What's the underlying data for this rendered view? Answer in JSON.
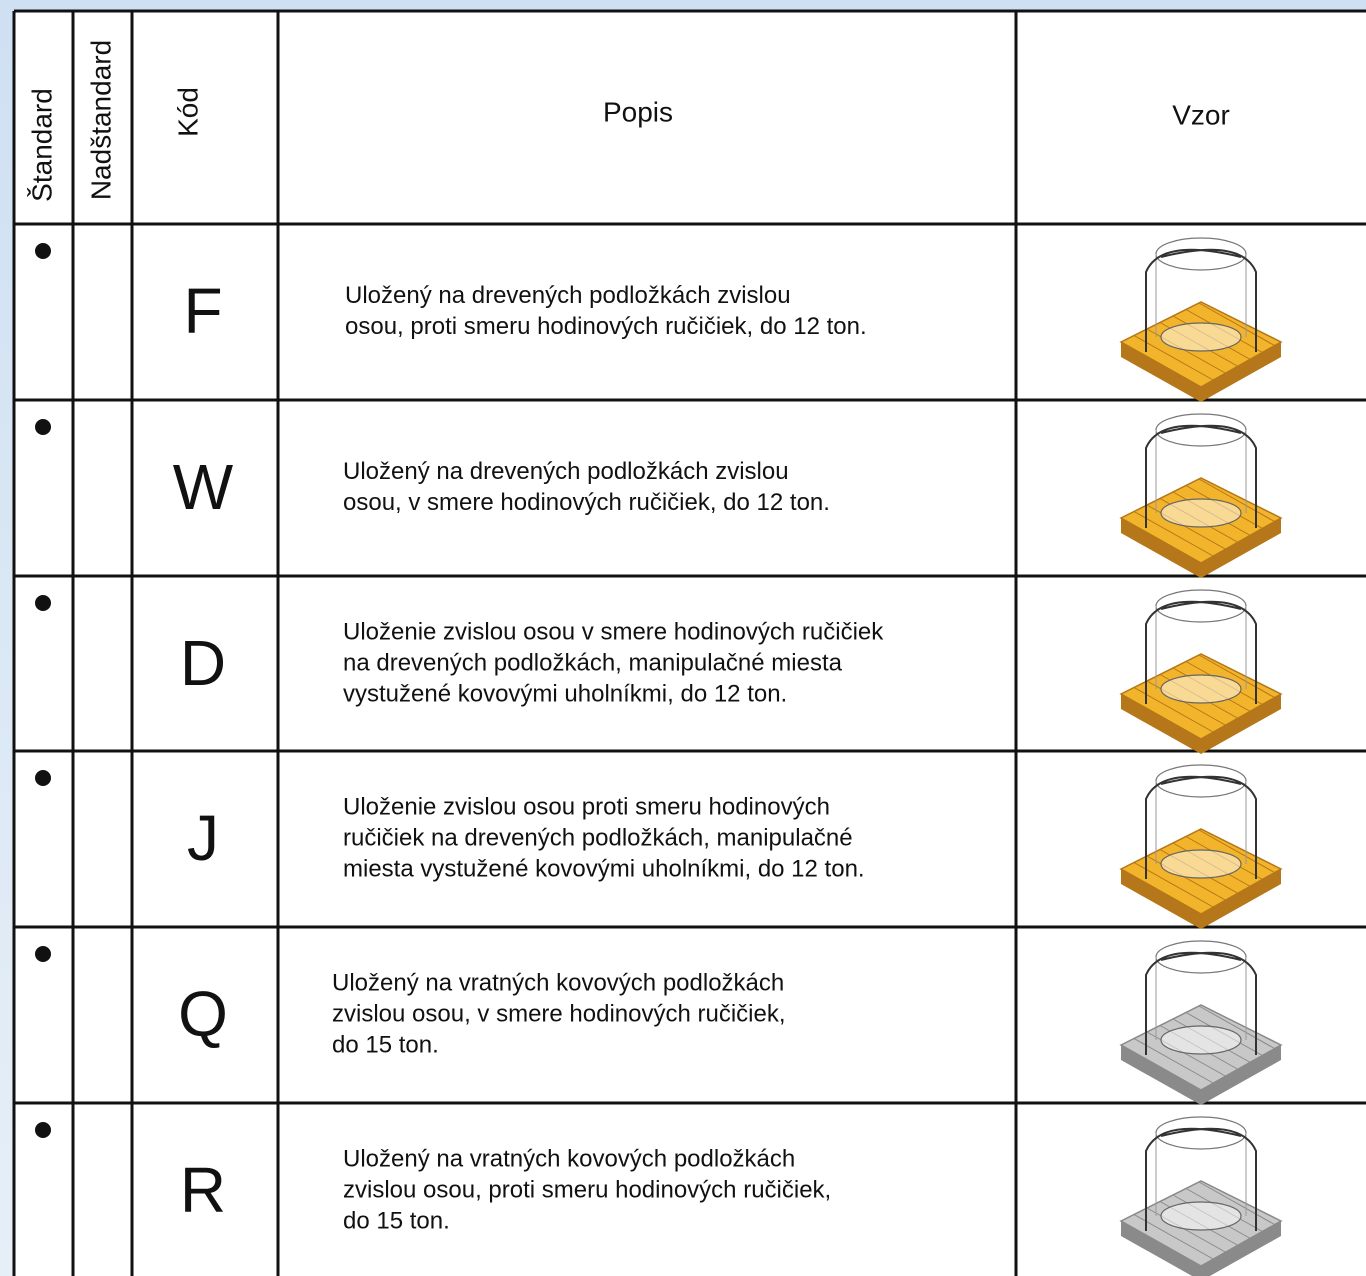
{
  "table": {
    "header": [
      "Štandard",
      "Nadštandard",
      "Kód",
      "Popis",
      "Vzor"
    ],
    "rows": [
      {
        "code": "F",
        "description": [
          "Uložený na drevených podložkách zvislou",
          "osou, proti smeru hodinových ručičiek, do 12 ton."
        ]
      },
      {
        "code": "W",
        "description": [
          "Uložený na drevených podložkách zvislou",
          "osou, v smere hodinových ručičiek, do 12 ton."
        ]
      },
      {
        "code": "D",
        "description": [
          "Uloženie zvislou osou v smere hodinových ručičiek",
          "na drevených podložkách, manipulačné miesta",
          "vystužené kovovými uholníkmi, do 12 ton."
        ]
      },
      {
        "code": "J",
        "description": [
          "Uloženie zvislou osou proti smeru hodinových",
          "ručičiek na drevených podložkách, manipulačné",
          "miesta vystužené kovovými uholníkmi, do 12 ton."
        ]
      },
      {
        "code": "Q",
        "description": [
          "Uložený na vratných kovových podložkách",
          "zvislou osou, v smere hodinových ručičiek,",
          "do 15 ton."
        ]
      },
      {
        "code": "R",
        "description": [
          "Uložený na vratných kovových podložkách",
          "zvislou osou, proti smeru hodinových ručičiek,",
          "do 15 ton."
        ]
      }
    ]
  }
}
